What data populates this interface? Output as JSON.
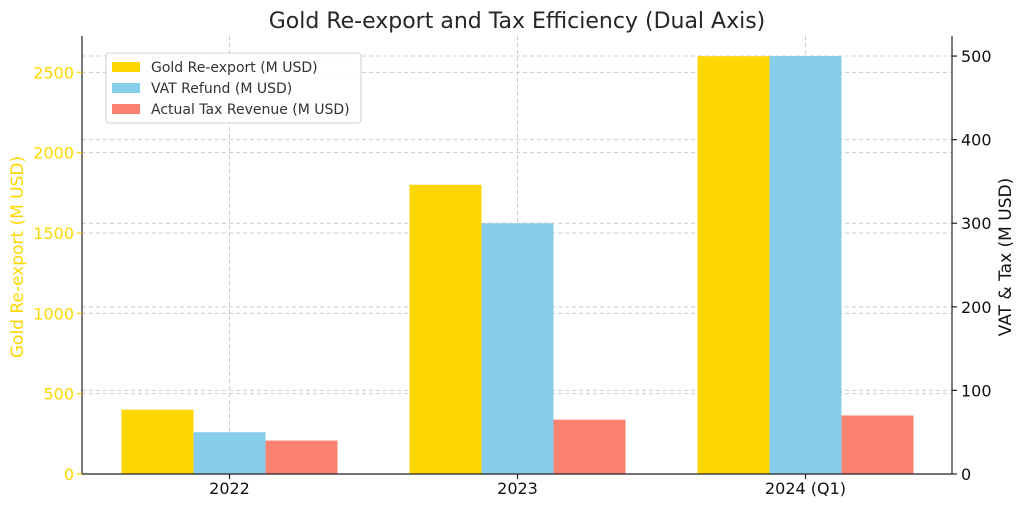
{
  "chart_data": {
    "type": "bar",
    "title": "Gold Re-export and Tax Efficiency (Dual Axis)",
    "categories": [
      "2022",
      "2023",
      "2024 (Q1)"
    ],
    "series": [
      {
        "name": "Gold Re-export (M USD)",
        "axis": "left",
        "color": "#FFD700",
        "values": [
          400,
          1800,
          2600
        ]
      },
      {
        "name": "VAT Refund (M USD)",
        "axis": "right",
        "color": "#87CEEB",
        "values": [
          50,
          300,
          500
        ]
      },
      {
        "name": "Actual Tax Revenue (M USD)",
        "axis": "right",
        "color": "#FA8072",
        "values": [
          40,
          65,
          70
        ]
      }
    ],
    "y_left": {
      "label": "Gold Re-export (M USD)",
      "ylim": [
        0,
        2726
      ],
      "ticks": [
        0,
        500,
        1000,
        1500,
        2000,
        2500
      ],
      "color": "#FFD700"
    },
    "y_right": {
      "label": "VAT & Tax (M USD)",
      "ylim": [
        0,
        524
      ],
      "ticks": [
        0,
        100,
        200,
        300,
        400,
        500
      ],
      "color": "#111111"
    },
    "grid": true,
    "legend_position": "top-left"
  }
}
